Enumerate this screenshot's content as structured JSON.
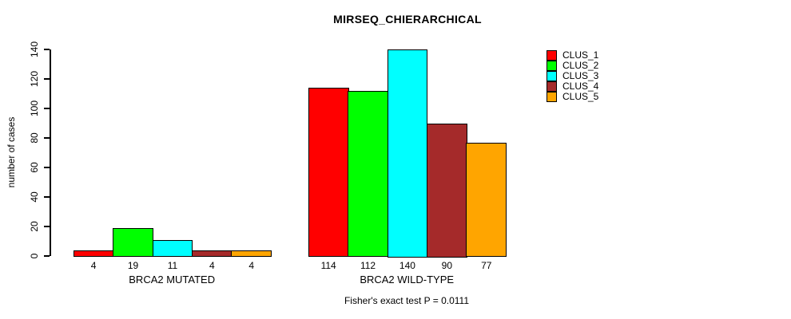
{
  "chart_data": {
    "type": "bar",
    "title": "MIRSEQ_CHIERARCHICAL",
    "ylabel": "number of cases",
    "xlabel": "",
    "ylim": [
      0,
      140
    ],
    "yticks": [
      0,
      20,
      40,
      60,
      80,
      100,
      120,
      140
    ],
    "categories": [
      "BRCA2 MUTATED",
      "BRCA2 WILD-TYPE"
    ],
    "series": [
      {
        "name": "CLUS_1",
        "color": "#FF0000",
        "values": [
          4,
          114
        ]
      },
      {
        "name": "CLUS_2",
        "color": "#00FF00",
        "values": [
          19,
          112
        ]
      },
      {
        "name": "CLUS_3",
        "color": "#00FFFF",
        "values": [
          11,
          140
        ]
      },
      {
        "name": "CLUS_4",
        "color": "#A52A2A",
        "values": [
          4,
          90
        ]
      },
      {
        "name": "CLUS_5",
        "color": "#FFA500",
        "values": [
          4,
          77
        ]
      }
    ],
    "bar_value_labels_shown": true,
    "grid": false,
    "legend_position": "top-right",
    "annotation": "Fisher's exact test P = 0.0111",
    "text_color": "#000000",
    "background_color": "#FFFFFF"
  }
}
